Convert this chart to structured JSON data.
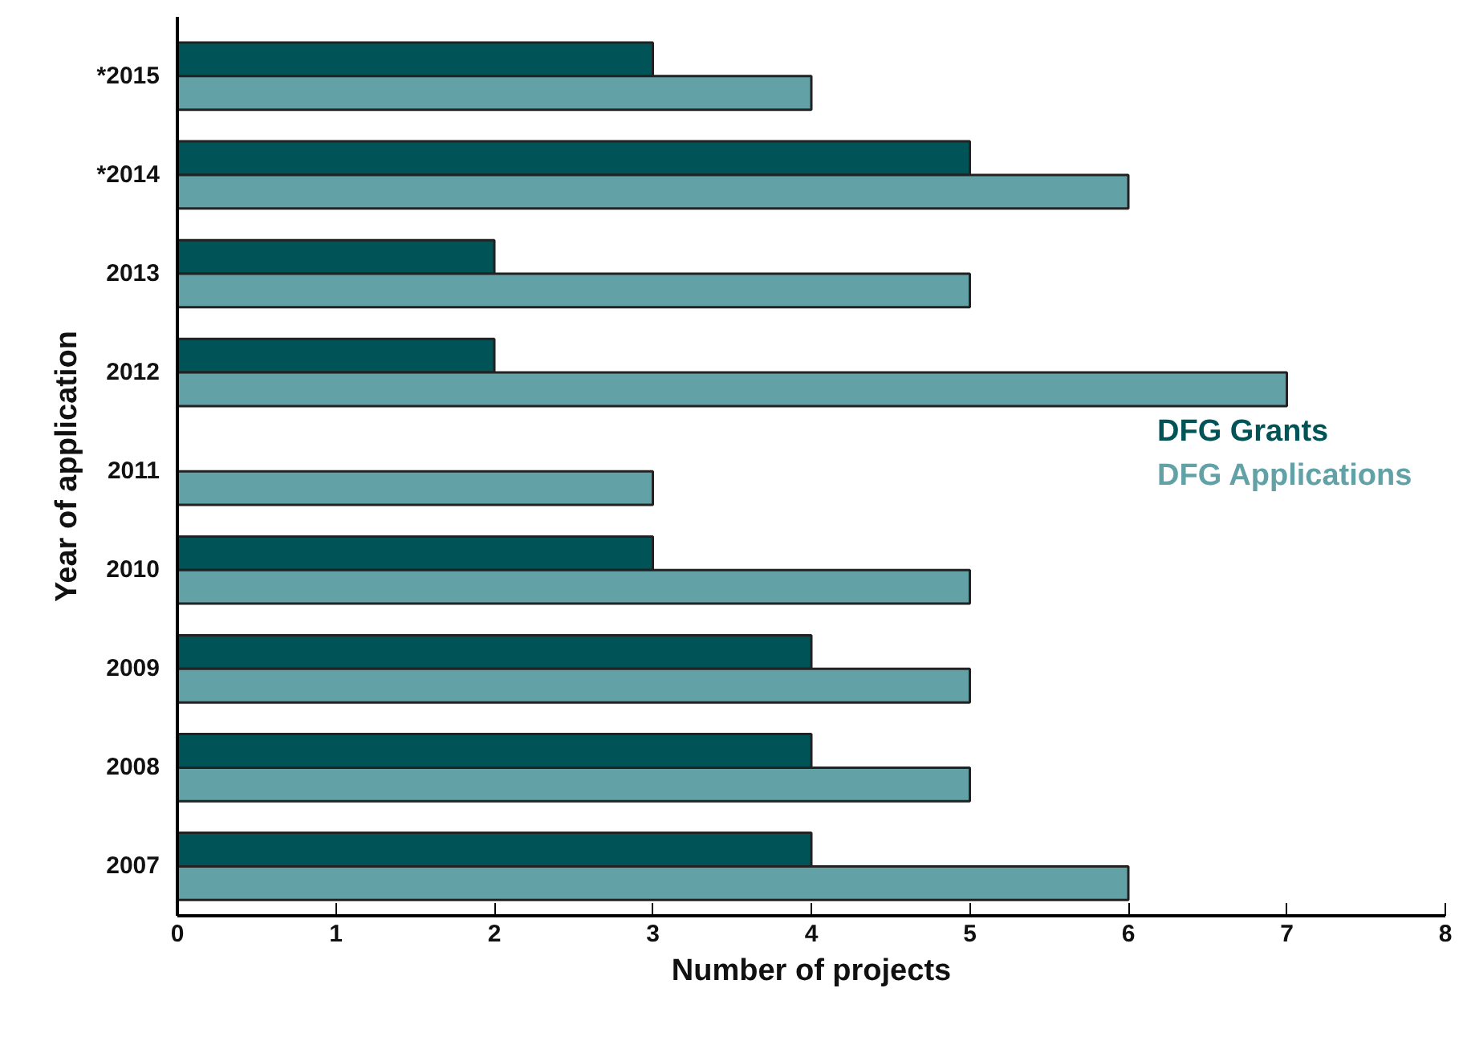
{
  "chart_data": {
    "type": "bar",
    "orientation": "horizontal",
    "ylabel": "Year of application",
    "xlabel": "Number of projects",
    "categories": [
      "*2015",
      "*2014",
      "2013",
      "2012",
      "2011",
      "2010",
      "2009",
      "2008",
      "2007"
    ],
    "series": [
      {
        "name": "DFG Grants",
        "color": "#005356",
        "values": [
          3,
          5,
          2,
          2,
          null,
          3,
          4,
          4,
          4
        ]
      },
      {
        "name": "DFG Applications",
        "color": "#62a1a6",
        "values": [
          4,
          6,
          5,
          7,
          3,
          5,
          5,
          5,
          6
        ]
      }
    ],
    "xlim": [
      0,
      8
    ],
    "xticks": [
      0,
      1,
      2,
      3,
      4,
      5,
      6,
      7,
      8
    ],
    "grid": false,
    "legend": "right"
  }
}
